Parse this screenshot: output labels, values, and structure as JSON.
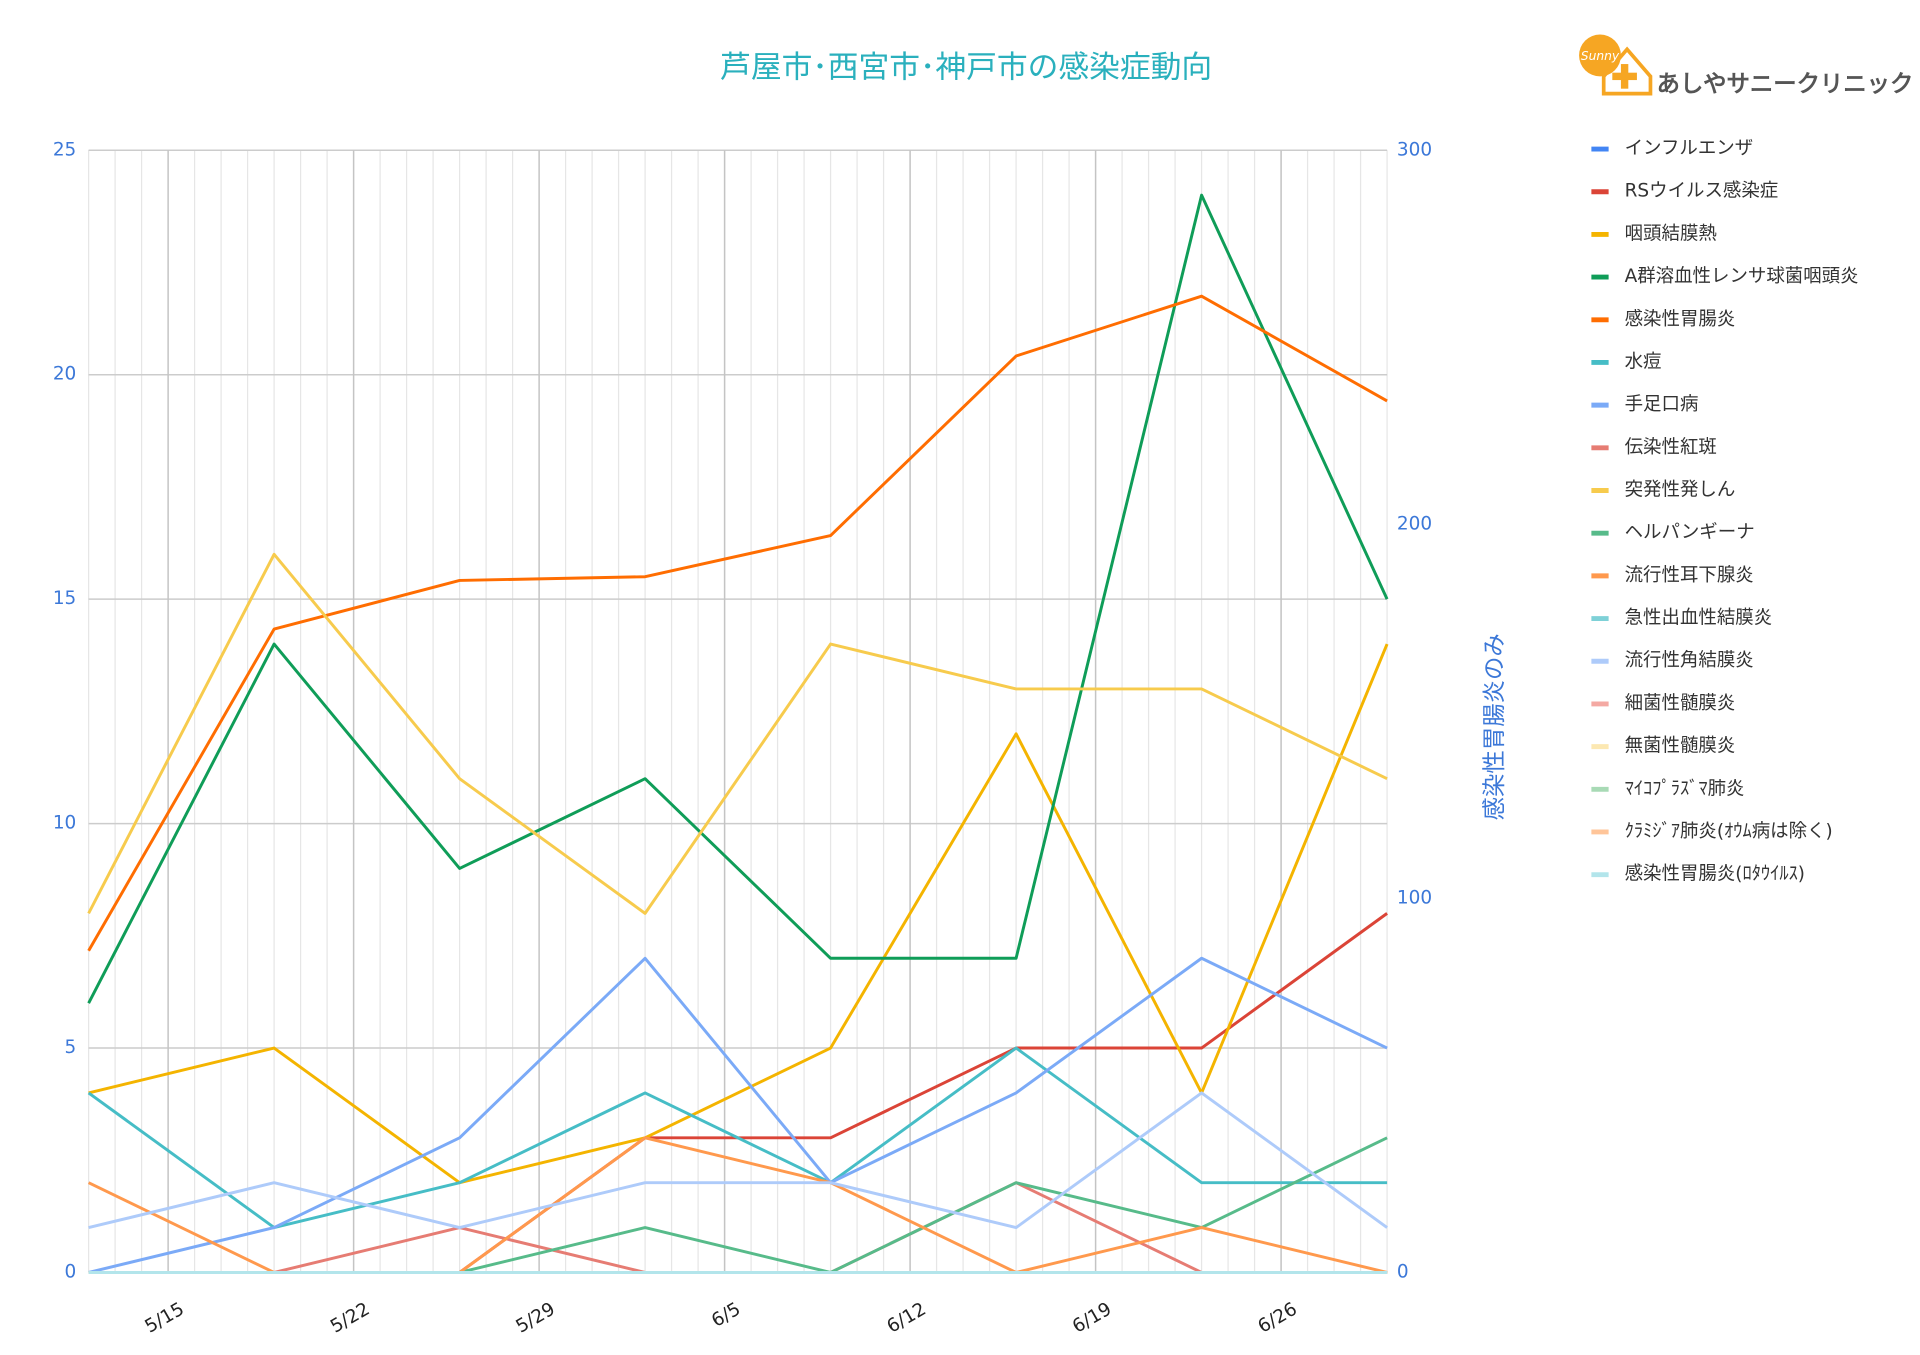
{
  "chart_data": {
    "type": "line",
    "title": "芦屋市･西宮市･神戸市の感染症動向",
    "brand": "あしやサニークリニック",
    "logo_text": "Sunny",
    "y2_label": "感染性胃腸炎のみ",
    "x": [
      "5/12",
      "5/19",
      "5/26",
      "6/2",
      "6/9",
      "6/16",
      "6/23",
      "6/30"
    ],
    "xlim": [
      "5/12",
      "6/30"
    ],
    "xticks": [
      "5/15",
      "5/22",
      "5/29",
      "6/5",
      "6/12",
      "6/19",
      "6/26"
    ],
    "ylim": [
      0,
      25
    ],
    "yticks": [
      0,
      5,
      10,
      15,
      20,
      25
    ],
    "y2lim": [
      0,
      300
    ],
    "y2ticks": [
      0,
      100,
      200,
      300
    ],
    "grid": true,
    "minor_grid": true,
    "legend": "right",
    "series": [
      {
        "name": "インフルエンザ",
        "color": "#4285f4",
        "values": [
          0,
          0,
          0,
          0,
          0,
          0,
          0,
          0
        ]
      },
      {
        "name": "RSウイルス感染症",
        "color": "#db4437",
        "values": [
          0,
          0,
          0,
          3,
          3,
          5,
          5,
          8
        ]
      },
      {
        "name": "咽頭結膜熱",
        "color": "#f4b400",
        "values": [
          4,
          5,
          2,
          3,
          5,
          12,
          4,
          14
        ]
      },
      {
        "name": "A群溶血性レンサ球菌咽頭炎",
        "color": "#0f9d58",
        "values": [
          6,
          14,
          9,
          11,
          7,
          7,
          24,
          15
        ]
      },
      {
        "name": "感染性胃腸炎",
        "color": "#ff6d01",
        "axis": "y2",
        "values": [
          86,
          172,
          185,
          186,
          197,
          245,
          261,
          233
        ]
      },
      {
        "name": "水痘",
        "color": "#46bdc6",
        "values": [
          4,
          1,
          2,
          4,
          2,
          5,
          2,
          2
        ]
      },
      {
        "name": "手足口病",
        "color": "#7baaf7",
        "values": [
          0,
          1,
          3,
          7,
          2,
          4,
          7,
          5
        ]
      },
      {
        "name": "伝染性紅斑",
        "color": "#e67c73",
        "values": [
          0,
          0,
          1,
          0,
          0,
          2,
          0,
          0
        ]
      },
      {
        "name": "突発性発しん",
        "color": "#f7cb4d",
        "values": [
          8,
          16,
          11,
          8,
          14,
          13,
          13,
          11
        ]
      },
      {
        "name": "ヘルパンギーナ",
        "color": "#57bb8a",
        "values": [
          0,
          0,
          0,
          1,
          0,
          2,
          1,
          3
        ]
      },
      {
        "name": "流行性耳下腺炎",
        "color": "#ff994d",
        "values": [
          2,
          0,
          0,
          3,
          2,
          0,
          1,
          0
        ]
      },
      {
        "name": "急性出血性結膜炎",
        "color": "#7ed1d7",
        "values": [
          0,
          0,
          0,
          0,
          0,
          0,
          0,
          0
        ]
      },
      {
        "name": "流行性角結膜炎",
        "color": "#aecbfa",
        "values": [
          1,
          2,
          1,
          2,
          2,
          1,
          4,
          1
        ]
      },
      {
        "name": "細菌性髄膜炎",
        "color": "#f4a9a3",
        "values": [
          0,
          0,
          0,
          0,
          0,
          0,
          0,
          0
        ]
      },
      {
        "name": "無菌性髄膜炎",
        "color": "#fce8b2",
        "values": [
          0,
          0,
          0,
          0,
          0,
          0,
          0,
          0
        ]
      },
      {
        "name": "ﾏｲｺﾌﾟﾗｽﾞﾏ肺炎",
        "color": "#a8dab5",
        "values": [
          0,
          0,
          0,
          0,
          0,
          0,
          0,
          0
        ]
      },
      {
        "name": "ｸﾗﾐｼﾞｱ肺炎(ｵｳﾑ病は除く)",
        "color": "#ffc599",
        "values": [
          0,
          0,
          0,
          0,
          0,
          0,
          0,
          0
        ]
      },
      {
        "name": "感染性胃腸炎(ﾛﾀｳｲﾙｽ)",
        "color": "#b3e5eb",
        "values": [
          0,
          0,
          0,
          0,
          0,
          0,
          0,
          0
        ]
      }
    ]
  }
}
